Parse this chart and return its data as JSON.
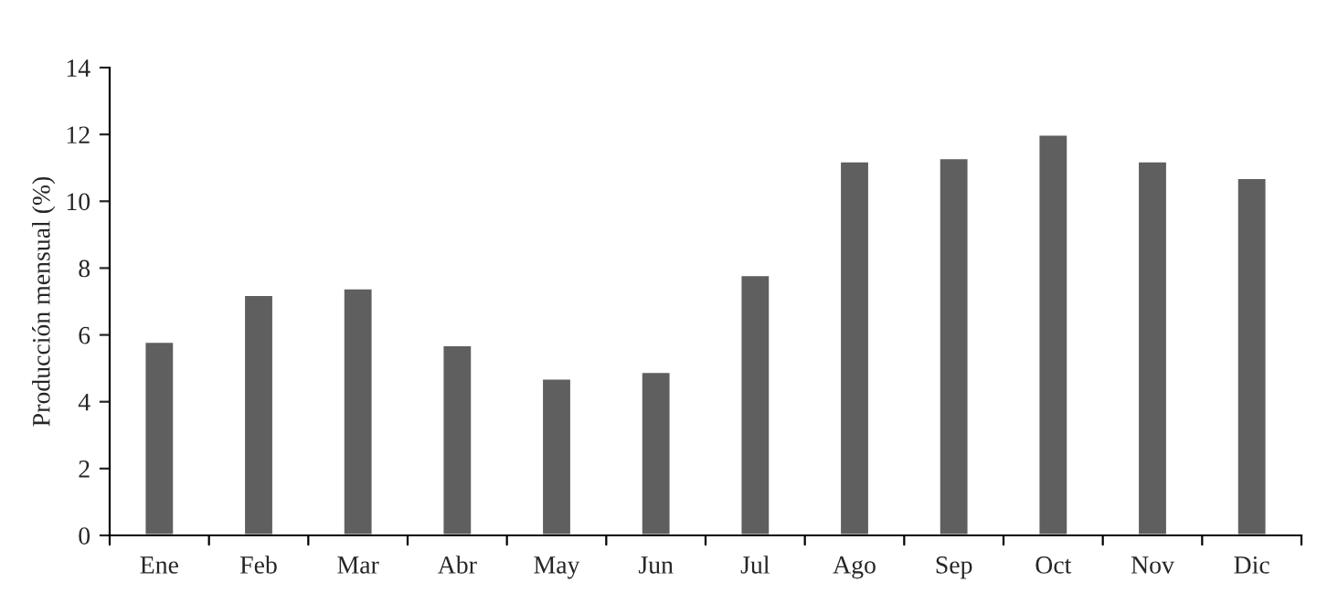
{
  "chart_data": {
    "type": "bar",
    "ylabel": "Producción mensual (%)",
    "categories": [
      "Ene",
      "Feb",
      "Mar",
      "Abr",
      "May",
      "Jun",
      "Jul",
      "Ago",
      "Sep",
      "Oct",
      "Nov",
      "Dic"
    ],
    "values": [
      5.8,
      7.2,
      7.4,
      5.7,
      4.7,
      4.9,
      7.8,
      11.2,
      11.3,
      12.0,
      11.2,
      10.7
    ],
    "color": "#5f5f5f",
    "ylim": [
      0,
      14
    ],
    "yticks": [
      0,
      2,
      4,
      6,
      8,
      10,
      12,
      14
    ],
    "grid": false,
    "legend": false
  }
}
